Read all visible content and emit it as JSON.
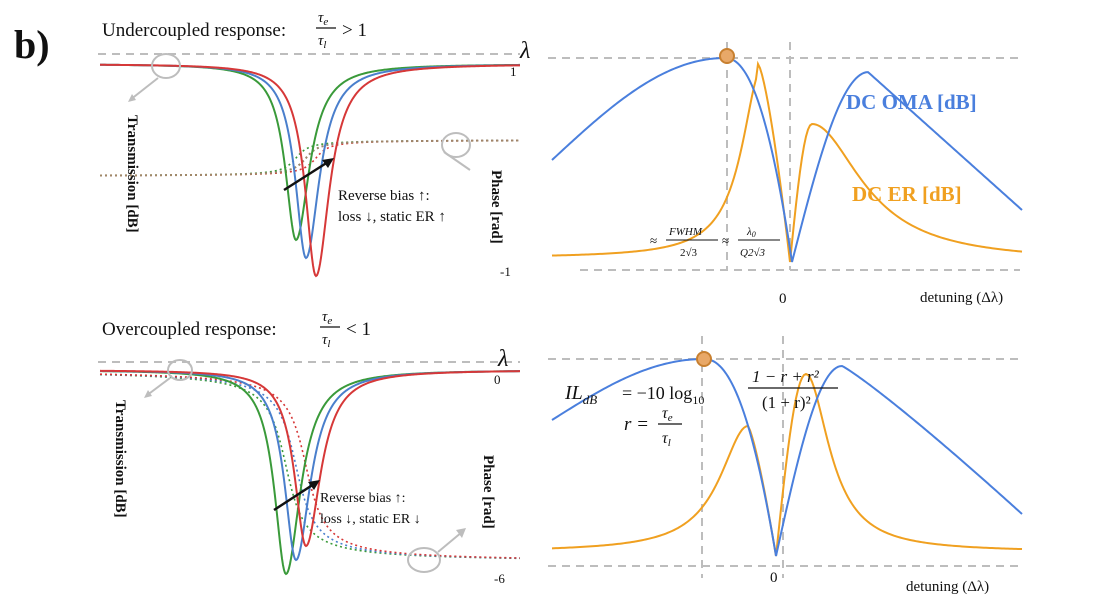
{
  "panel_label": "b)",
  "colors": {
    "green": "#3a9a3a",
    "blue": "#4a7fcc",
    "red": "#d63838",
    "orange": "#f0a020",
    "oma_blue": "#4a7fdd",
    "grid": "#bdbdbd",
    "marker_fill": "#e8a868",
    "marker_stroke": "#c88030",
    "arrow": "#111111"
  },
  "top_left": {
    "title": "Undercoupled response: ",
    "tau_e": "τ",
    "tau_e_sub": "e",
    "tau_l": "τ",
    "tau_l_sub": "l",
    "relation": "> 1",
    "lambda_label": "λ",
    "tick_top": "1",
    "tick_bottom": "-1",
    "y_label_left": "Transmission [dB]",
    "y_label_right": "Phase [rad]",
    "annotation_line1": "Reverse bias ↑:",
    "annotation_line2": "loss ↓, static ER ↑",
    "series_colors": [
      "green",
      "blue",
      "red"
    ]
  },
  "bottom_left": {
    "title": "Overcoupled response: ",
    "tau_e": "τ",
    "tau_e_sub": "e",
    "tau_l": "τ",
    "tau_l_sub": "l",
    "relation": "< 1",
    "lambda_label": "λ",
    "tick_top": "0",
    "tick_bottom": "-6",
    "y_label_left": "Transmission [dB]",
    "y_label_right": "Phase [rad]",
    "annotation_line1": "Reverse bias ↑:",
    "annotation_line2": "loss ↓, static ER ↓",
    "series_colors": [
      "green",
      "blue",
      "red"
    ]
  },
  "top_right": {
    "oma_label": "DC OMA [dB]",
    "er_label": "DC ER [dB]",
    "approx1": "≈",
    "fwhm_num": "FWHM",
    "fwhm_den": "2√3",
    "approx2": "≈",
    "lambda0_num": "λ",
    "lambda0_sub": "0",
    "lambda0_den": "Q2√3",
    "zero_tick": "0",
    "x_label": "detuning (Δλ)"
  },
  "bottom_right": {
    "il_lhs": "IL",
    "il_sub": "dB",
    "il_eq": "= −10 log",
    "il_log_sub": "10",
    "il_num": "1 − r + r²",
    "il_den": "(1 + r)²",
    "r_lhs": "r =",
    "r_num": "τ",
    "r_num_sub": "e",
    "r_den": "τ",
    "r_den_sub": "l",
    "zero_tick": "0",
    "x_label": "detuning (Δλ)"
  }
}
